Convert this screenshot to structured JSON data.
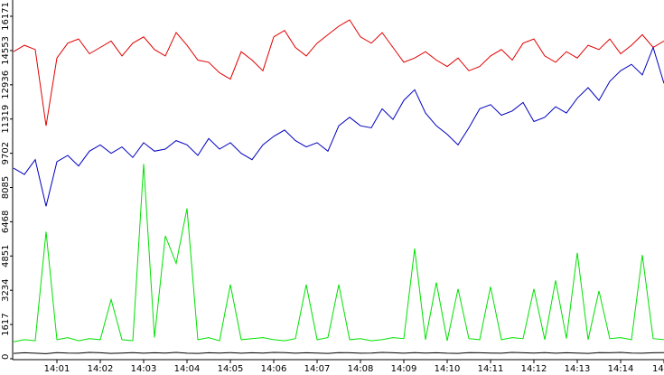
{
  "chart_data": {
    "type": "line",
    "x": [
      0,
      0.25,
      0.5,
      0.75,
      1,
      1.25,
      1.5,
      1.75,
      2,
      2.25,
      2.5,
      2.75,
      3,
      3.25,
      3.5,
      3.75,
      4,
      4.25,
      4.5,
      4.75,
      5,
      5.25,
      5.5,
      5.75,
      6,
      6.25,
      6.5,
      6.75,
      7,
      7.25,
      7.5,
      7.75,
      8,
      8.25,
      8.5,
      8.75,
      9,
      9.25,
      9.5,
      9.75,
      10,
      10.25,
      10.5,
      10.75,
      11,
      11.25,
      11.5,
      11.75,
      12,
      12.25,
      12.5,
      12.75,
      13,
      13.25,
      13.5,
      13.75,
      14,
      14.25,
      14.5,
      14.75,
      15
    ],
    "series": [
      {
        "color": "#e00000",
        "values": [
          14500,
          14800,
          14600,
          11000,
          14200,
          14900,
          15100,
          14400,
          14700,
          15000,
          14300,
          14900,
          15200,
          14600,
          14300,
          15400,
          14800,
          14100,
          14000,
          13500,
          13200,
          14500,
          14100,
          13600,
          15200,
          15500,
          14700,
          14300,
          14900,
          15300,
          15700,
          16000,
          15200,
          14900,
          15400,
          14700,
          14000,
          14200,
          14500,
          14100,
          13800,
          14200,
          13600,
          13800,
          14300,
          14600,
          14100,
          14900,
          15100,
          14300,
          14000,
          14500,
          14200,
          14800,
          14600,
          15100,
          14400,
          14800,
          15300,
          14700,
          15000
        ]
      },
      {
        "color": "#0000c0",
        "values": [
          9000,
          8700,
          9400,
          7200,
          9300,
          9600,
          9100,
          9800,
          10100,
          9700,
          10000,
          9500,
          10200,
          9800,
          9900,
          10300,
          10100,
          9600,
          10400,
          9900,
          10200,
          9700,
          9400,
          10100,
          10500,
          10800,
          10300,
          10000,
          10200,
          9800,
          11000,
          11400,
          11000,
          10900,
          11800,
          11300,
          12200,
          12700,
          11600,
          11000,
          10600,
          10100,
          10900,
          11800,
          12000,
          11500,
          11700,
          12100,
          11200,
          11400,
          11900,
          11600,
          12300,
          12800,
          12200,
          13100,
          13600,
          13900,
          13400,
          14700,
          13000
        ]
      },
      {
        "color": "#00e000",
        "values": [
          800,
          900,
          850,
          6000,
          900,
          1000,
          850,
          950,
          900,
          2800,
          900,
          850,
          9200,
          1000,
          5800,
          4500,
          7100,
          900,
          1000,
          850,
          3500,
          900,
          950,
          1000,
          900,
          850,
          950,
          3500,
          900,
          1000,
          3500,
          900,
          950,
          850,
          900,
          1000,
          950,
          5200,
          900,
          3600,
          850,
          3300,
          950,
          900,
          3400,
          900,
          1000,
          950,
          3300,
          900,
          3700,
          950,
          5000,
          900,
          3200,
          950,
          1000,
          900,
          4900,
          950,
          900
        ]
      },
      {
        "color": "#000000",
        "values": [
          250,
          280,
          260,
          240,
          290,
          270,
          260,
          300,
          280,
          250,
          270,
          290,
          260,
          280,
          270,
          300,
          260,
          250,
          280,
          270,
          290,
          260,
          280,
          270,
          300,
          290,
          260,
          280,
          270,
          250,
          290,
          280,
          260,
          270,
          300,
          280,
          260,
          290,
          270,
          280,
          260,
          250,
          290,
          280,
          270,
          260,
          300,
          280,
          270,
          290,
          260,
          280,
          270,
          250,
          290,
          280,
          300,
          270,
          260,
          280,
          290
        ]
      }
    ],
    "xlim": [
      0,
      15
    ],
    "xticks": [
      {
        "value": 1,
        "label": "14:01"
      },
      {
        "value": 2,
        "label": "14:02"
      },
      {
        "value": 3,
        "label": "14:03"
      },
      {
        "value": 4,
        "label": "14:04"
      },
      {
        "value": 5,
        "label": "14:05"
      },
      {
        "value": 6,
        "label": "14:06"
      },
      {
        "value": 7,
        "label": "14:07"
      },
      {
        "value": 8,
        "label": "14:08"
      },
      {
        "value": 9,
        "label": "14:09"
      },
      {
        "value": 10,
        "label": "14:10"
      },
      {
        "value": 11,
        "label": "14:11"
      },
      {
        "value": 12,
        "label": "14:12"
      },
      {
        "value": 13,
        "label": "14:13"
      },
      {
        "value": 14,
        "label": "14:14"
      },
      {
        "value": 15,
        "label": "14:"
      }
    ],
    "ylim": [
      0,
      16171
    ],
    "yticks": [
      0,
      1617,
      3234,
      4851,
      6468,
      8085,
      9702,
      11319,
      12936,
      14553,
      16171
    ],
    "grid": false
  }
}
